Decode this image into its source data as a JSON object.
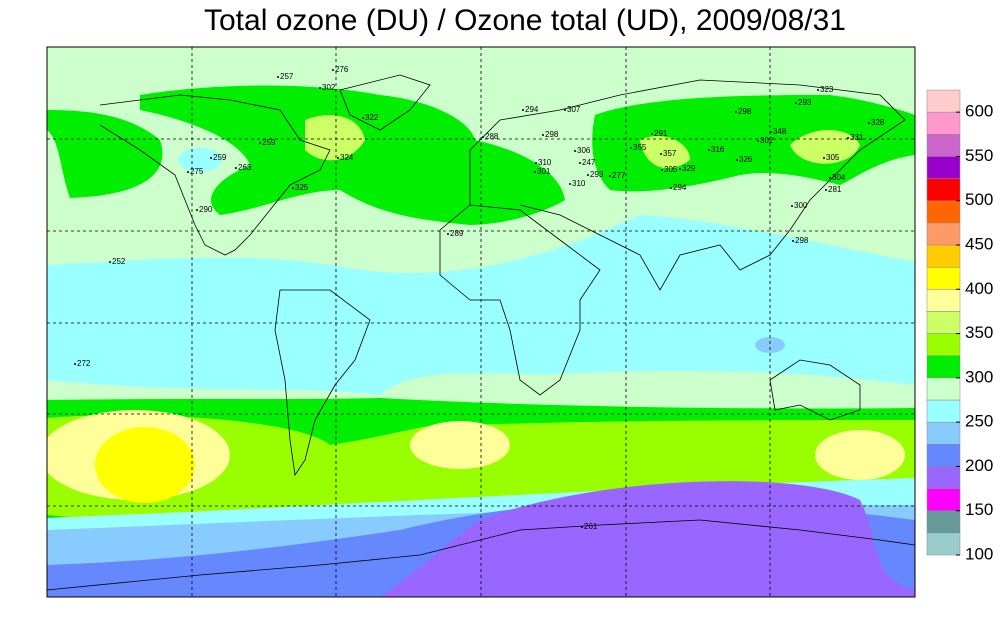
{
  "title": "Total ozone (DU) / Ozone total (UD), 2009/08/31",
  "colorbar": {
    "lim": [
      100,
      625
    ],
    "ticks": [
      100,
      150,
      200,
      250,
      300,
      350,
      400,
      450,
      500,
      550,
      600
    ],
    "colors": [
      "#99cccc",
      "#669999",
      "#ff00ff",
      "#9966ff",
      "#6688ff",
      "#88ccff",
      "#99ffff",
      "#ccffcc",
      "#00ee00",
      "#99ff00",
      "#ccff66",
      "#ffff99",
      "#ffff00",
      "#ffcc00",
      "#ff9966",
      "#ff6600",
      "#ff0000",
      "#9900cc",
      "#cc66cc",
      "#ff99cc",
      "#ffcccc"
    ]
  },
  "stations": [
    276,
    257,
    302,
    322,
    259,
    259,
    275,
    263,
    324,
    325,
    290,
    252,
    272,
    289,
    294,
    307,
    288,
    298,
    306,
    247,
    310,
    301,
    293,
    277,
    310,
    355,
    291,
    357,
    316,
    305,
    329,
    294,
    302,
    298,
    348,
    293,
    323,
    331,
    328,
    326,
    305,
    304,
    281,
    300,
    298,
    261
  ]
}
